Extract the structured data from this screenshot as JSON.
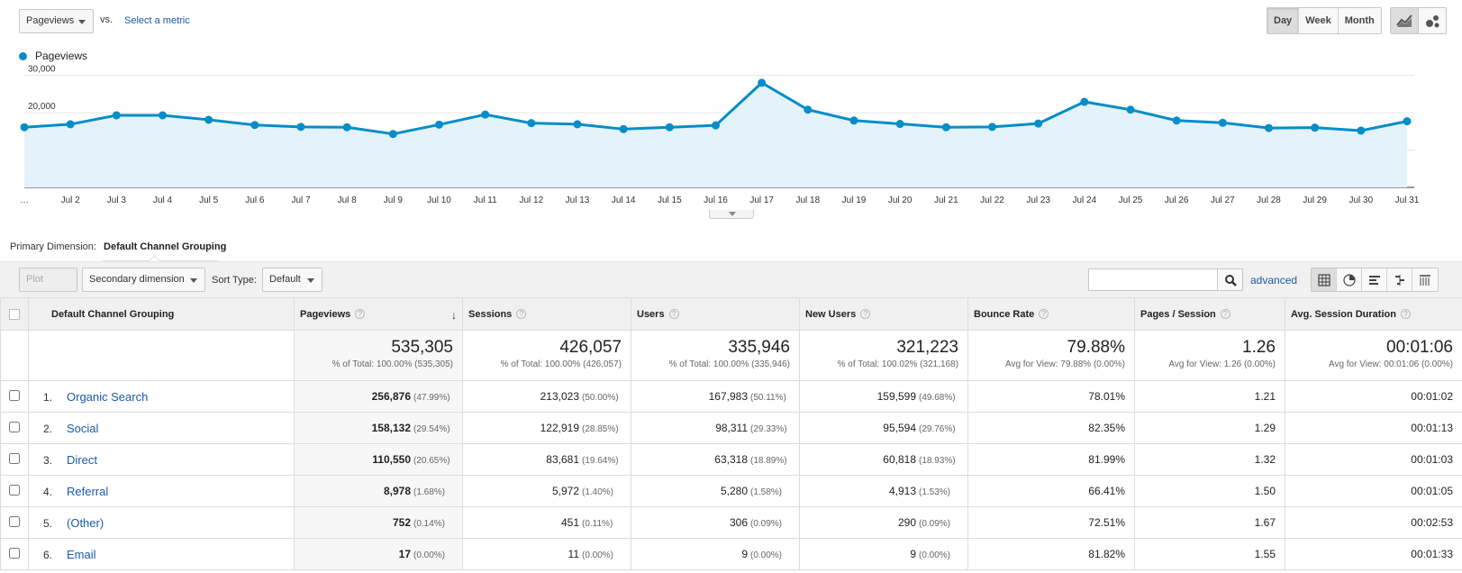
{
  "header": {
    "metric_select": "Pageviews",
    "vs_label": "vs.",
    "select_metric_link": "Select a metric",
    "periods": [
      "Day",
      "Week",
      "Month"
    ],
    "active_period": "Day",
    "chart_types": [
      "line-chart-icon",
      "motion-chart-icon"
    ]
  },
  "legend": {
    "label": "Pageviews",
    "color": "#058dc7"
  },
  "chart_data": {
    "type": "area",
    "series": [
      {
        "name": "Pageviews",
        "color": "#058dc7",
        "values": [
          16100,
          16900,
          19300,
          19300,
          18100,
          16700,
          16200,
          16100,
          14300,
          16800,
          19500,
          17200,
          16900,
          15600,
          16100,
          16600,
          28000,
          20800,
          17900,
          17000,
          16100,
          16200,
          17100,
          22900,
          20800,
          17900,
          17300,
          15900,
          16000,
          15200,
          17700
        ]
      }
    ],
    "x": [
      "…",
      "Jul 2",
      "Jul 3",
      "Jul 4",
      "Jul 5",
      "Jul 6",
      "Jul 7",
      "Jul 8",
      "Jul 9",
      "Jul 10",
      "Jul 11",
      "Jul 12",
      "Jul 13",
      "Jul 14",
      "Jul 15",
      "Jul 16",
      "Jul 17",
      "Jul 18",
      "Jul 19",
      "Jul 20",
      "Jul 21",
      "Jul 22",
      "Jul 23",
      "Jul 24",
      "Jul 25",
      "Jul 26",
      "Jul 27",
      "Jul 28",
      "Jul 29",
      "Jul 30",
      "Jul 31"
    ],
    "y_ticks": [
      "10,000",
      "20,000",
      "30,000"
    ],
    "ylim": [
      0,
      30000
    ],
    "grid": true,
    "legend_position": "top-left"
  },
  "primary_dimension": {
    "label": "Primary Dimension:",
    "value": "Default Channel Grouping"
  },
  "toolbar": {
    "plot_rows": "Plot Rows",
    "secondary_dimension": "Secondary dimension",
    "sort_type_label": "Sort Type:",
    "sort_type_value": "Default",
    "advanced": "advanced",
    "view_icons": [
      "table-view-icon",
      "pie-view-icon",
      "performance-view-icon",
      "comparison-view-icon",
      "pivot-view-icon"
    ]
  },
  "table": {
    "columns": [
      "Default Channel Grouping",
      "Pageviews",
      "Sessions",
      "Users",
      "New Users",
      "Bounce Rate",
      "Pages / Session",
      "Avg. Session Duration"
    ],
    "totals": [
      {
        "value": "535,305",
        "sub": "% of Total: 100.00% (535,305)"
      },
      {
        "value": "426,057",
        "sub": "% of Total: 100.00% (426,057)"
      },
      {
        "value": "335,946",
        "sub": "% of Total: 100.00% (335,946)"
      },
      {
        "value": "321,223",
        "sub": "% of Total: 100.02% (321,168)"
      },
      {
        "value": "79.88%",
        "sub": "Avg for View: 79.88% (0.00%)"
      },
      {
        "value": "1.26",
        "sub": "Avg for View: 1.26 (0.00%)"
      },
      {
        "value": "00:01:06",
        "sub": "Avg for View: 00:01:06 (0.00%)"
      }
    ],
    "rows": [
      {
        "num": "1.",
        "channel": "Organic Search",
        "pageviews": "256,876",
        "pageviews_pct": "(47.99%)",
        "sessions": "213,023",
        "sessions_pct": "(50.00%)",
        "users": "167,983",
        "users_pct": "(50.11%)",
        "new_users": "159,599",
        "new_users_pct": "(49.68%)",
        "bounce": "78.01%",
        "pps": "1.21",
        "duration": "00:01:02"
      },
      {
        "num": "2.",
        "channel": "Social",
        "pageviews": "158,132",
        "pageviews_pct": "(29.54%)",
        "sessions": "122,919",
        "sessions_pct": "(28.85%)",
        "users": "98,311",
        "users_pct": "(29.33%)",
        "new_users": "95,594",
        "new_users_pct": "(29.76%)",
        "bounce": "82.35%",
        "pps": "1.29",
        "duration": "00:01:13"
      },
      {
        "num": "3.",
        "channel": "Direct",
        "pageviews": "110,550",
        "pageviews_pct": "(20.65%)",
        "sessions": "83,681",
        "sessions_pct": "(19.64%)",
        "users": "63,318",
        "users_pct": "(18.89%)",
        "new_users": "60,818",
        "new_users_pct": "(18.93%)",
        "bounce": "81.99%",
        "pps": "1.32",
        "duration": "00:01:03"
      },
      {
        "num": "4.",
        "channel": "Referral",
        "pageviews": "8,978",
        "pageviews_pct": "(1.68%)",
        "sessions": "5,972",
        "sessions_pct": "(1.40%)",
        "users": "5,280",
        "users_pct": "(1.58%)",
        "new_users": "4,913",
        "new_users_pct": "(1.53%)",
        "bounce": "66.41%",
        "pps": "1.50",
        "duration": "00:01:05"
      },
      {
        "num": "5.",
        "channel": "(Other)",
        "pageviews": "752",
        "pageviews_pct": "(0.14%)",
        "sessions": "451",
        "sessions_pct": "(0.11%)",
        "users": "306",
        "users_pct": "(0.09%)",
        "new_users": "290",
        "new_users_pct": "(0.09%)",
        "bounce": "72.51%",
        "pps": "1.67",
        "duration": "00:02:53"
      },
      {
        "num": "6.",
        "channel": "Email",
        "pageviews": "17",
        "pageviews_pct": "(0.00%)",
        "sessions": "11",
        "sessions_pct": "(0.00%)",
        "users": "9",
        "users_pct": "(0.00%)",
        "new_users": "9",
        "new_users_pct": "(0.00%)",
        "bounce": "81.82%",
        "pps": "1.55",
        "duration": "00:01:33"
      }
    ]
  }
}
